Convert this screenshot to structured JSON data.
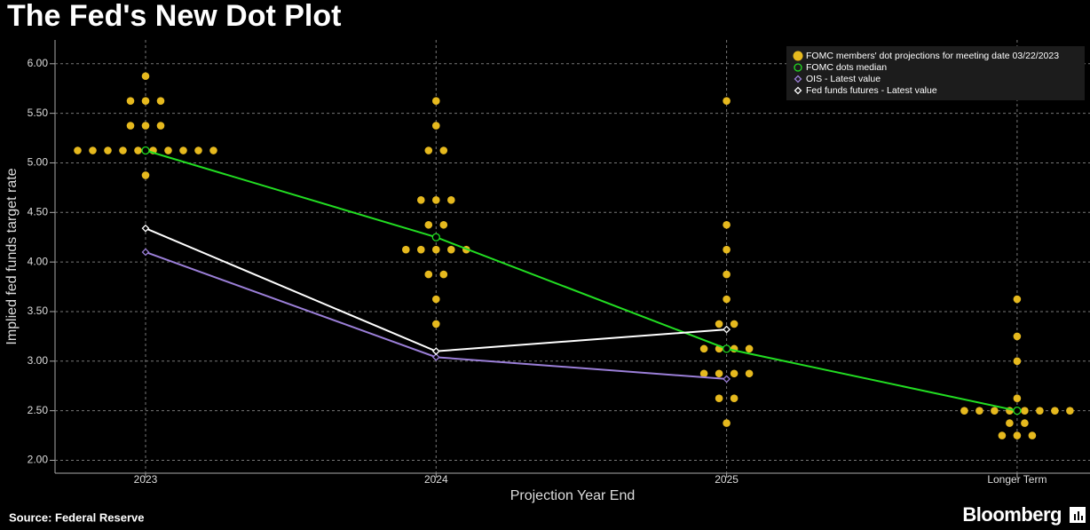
{
  "chart_data": {
    "type": "dot",
    "title": "The Fed's New Dot Plot",
    "source": "Source: Federal Reserve",
    "brand": "Bloomberg",
    "x_label": "Projection Year End",
    "y_label": "Implied fed funds target rate",
    "categories": [
      "2023",
      "2024",
      "2025",
      "Longer Term"
    ],
    "ylim": [
      1.87,
      6.24
    ],
    "yticks": [
      {
        "value": 2,
        "label": "2.00"
      },
      {
        "value": 2.5,
        "label": "2.50"
      },
      {
        "value": 3,
        "label": "3.00"
      },
      {
        "value": 3.5,
        "label": "3.50"
      },
      {
        "value": 4,
        "label": "4.00"
      },
      {
        "value": 4.5,
        "label": "4.50"
      },
      {
        "value": 5,
        "label": "5.00"
      },
      {
        "value": 5.5,
        "label": "5.50"
      },
      {
        "value": 6,
        "label": "6.00"
      }
    ],
    "grid": true,
    "legend": "upper right",
    "dots": {
      "name": "FOMC members' dot projections for meeting date 03/22/2023",
      "color": "#e6b91e",
      "levels": [
        [
          5.875,
          5.625,
          5.375,
          5.125,
          4.875
        ],
        [
          5.625,
          5.375,
          5.125,
          4.625,
          4.375,
          4.125,
          3.875,
          3.625,
          3.375
        ],
        [
          5.625,
          4.375,
          4.125,
          3.875,
          3.625,
          3.375,
          3.125,
          2.875,
          2.625,
          2.375
        ],
        [
          3.625,
          3.25,
          3.0,
          2.625,
          2.5,
          2.375,
          2.25
        ]
      ],
      "counts": [
        [
          1,
          3,
          3,
          10,
          1
        ],
        [
          1,
          1,
          2,
          3,
          2,
          5,
          2,
          1,
          1
        ],
        [
          1,
          1,
          1,
          1,
          1,
          2,
          4,
          4,
          2,
          1
        ],
        [
          1,
          1,
          1,
          1,
          8,
          2,
          3
        ]
      ]
    },
    "series": [
      {
        "name": "FOMC dots median",
        "color": "#22dd22",
        "marker": "circle",
        "values": [
          5.125,
          4.25,
          3.125,
          2.5
        ]
      },
      {
        "name": "OIS - Latest value",
        "color": "#9b7fd8",
        "marker": "diamond",
        "values": [
          4.1,
          3.04,
          2.82,
          null
        ]
      },
      {
        "name": "Fed funds futures - Latest value",
        "color": "#ffffff",
        "marker": "diamond",
        "values": [
          4.34,
          3.1,
          3.32,
          null
        ]
      }
    ]
  }
}
